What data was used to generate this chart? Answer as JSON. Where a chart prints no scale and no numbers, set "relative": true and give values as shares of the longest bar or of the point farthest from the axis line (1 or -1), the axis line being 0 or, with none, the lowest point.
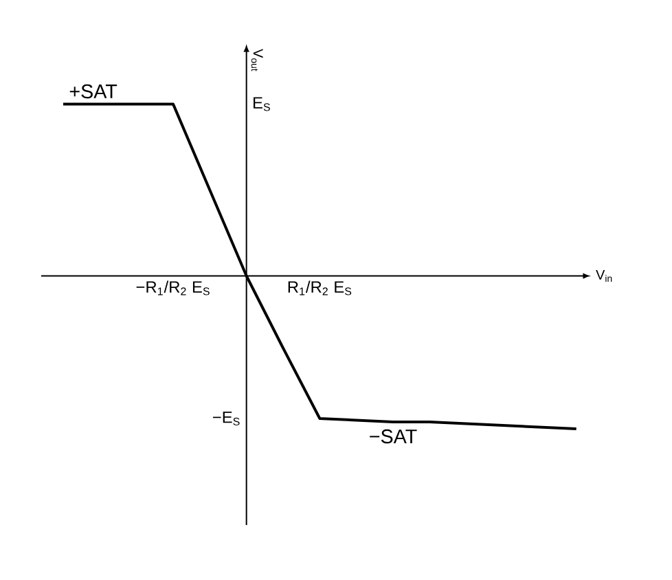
{
  "chart_data": {
    "type": "line",
    "xlabel": "V$_{in}$",
    "ylabel": "V$_{out}$",
    "relative": true,
    "categories": [
      null,
      null,
      null,
      "−R$_{1}$/R$_{2}$ E$_{S}$",
      null,
      null,
      null,
      "R$_{1}$/R$_{2}$ E$_{S}$",
      null,
      null,
      null,
      null,
      null,
      null,
      null
    ],
    "series": [
      {
        "color": "#000000",
        "values": [
          1,
          1,
          1,
          1,
          0.5,
          0,
          -0.42,
          -0.83,
          -0.84,
          -0.85,
          -0.85,
          -0.86,
          -0.87,
          -0.88,
          -0.89
        ]
      }
    ],
    "annotations": [
      {
        "text": "+SAT",
        "y": 1
      },
      {
        "text": "−SAT",
        "y": -0.86
      },
      "E$_{S}$",
      "−E$_{S}$"
    ],
    "marker": "none",
    "line_style": "solid"
  }
}
